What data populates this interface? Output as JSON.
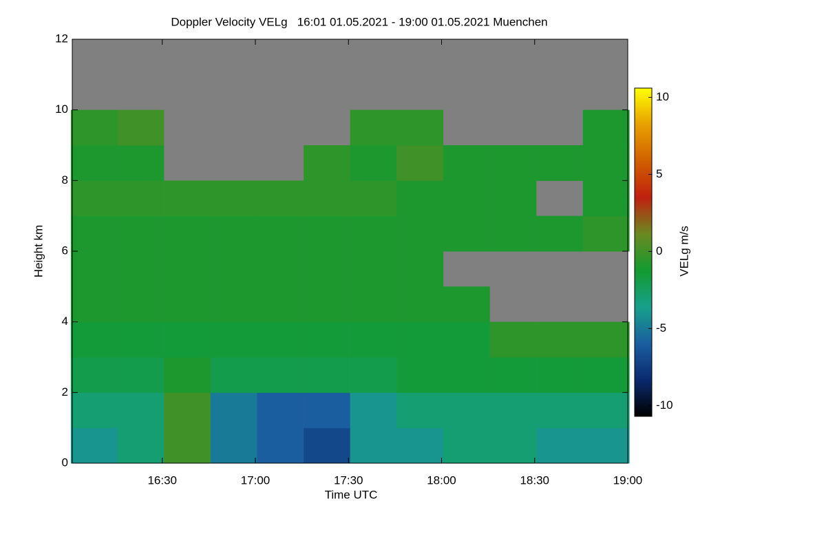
{
  "chart_data": {
    "type": "heatmap",
    "title": "Doppler Velocity VELg   16:01 01.05.2021 - 19:00 01.05.2021 Muenchen",
    "x_label": "Time UTC",
    "y_label": "Height km",
    "colorbar_label": "VELg m/s",
    "xlim": [
      961,
      1140
    ],
    "xticks": [
      {
        "value": 990,
        "label": "16:30"
      },
      {
        "value": 1020,
        "label": "17:00"
      },
      {
        "value": 1050,
        "label": "17:30"
      },
      {
        "value": 1080,
        "label": "18:00"
      },
      {
        "value": 1110,
        "label": "18:30"
      },
      {
        "value": 1140,
        "label": "19:00"
      }
    ],
    "ylim": [
      0,
      12
    ],
    "yticks": [
      0,
      2,
      4,
      6,
      8,
      10,
      12
    ],
    "zlim": [
      -10.7,
      10.6
    ],
    "zticks": [
      -10,
      -5,
      0,
      5,
      10
    ],
    "colors": [
      "#000000",
      "#0a2a6e",
      "#1a5fa0",
      "#17a08a",
      "#139a30",
      "#6a8a20",
      "#c02010",
      "#d06000",
      "#e8a000",
      "#ffff00"
    ],
    "missing_color": "#808080",
    "x": [
      968,
      983,
      998,
      1013,
      1028,
      1043,
      1058,
      1073,
      1088,
      1103,
      1118,
      1133
    ],
    "y": [
      0.5,
      1.5,
      2.5,
      3.5,
      4.5,
      5.5,
      6.5,
      7.5,
      8.5,
      9.5,
      10.5,
      11.5
    ],
    "z": [
      [
        -4,
        -3,
        0,
        -5,
        -6,
        -7,
        -4,
        -4,
        -3,
        -3,
        -4,
        -4
      ],
      [
        -3,
        -3,
        0,
        -5,
        -6,
        -6,
        -4,
        -3,
        -3,
        -3,
        -3,
        -3
      ],
      [
        -2,
        -2,
        -1,
        -2,
        -2,
        -2,
        -2,
        -1.5,
        -1.5,
        -1.5,
        -1.5,
        -1.5
      ],
      [
        -1.5,
        -1.5,
        -1.5,
        -1.5,
        -1.5,
        -1.5,
        -1.5,
        -1.5,
        -1.5,
        -0.5,
        -0.5,
        -0.5
      ],
      [
        -1,
        -1,
        -1,
        -1,
        -1,
        -1,
        -1,
        -1,
        -1,
        null,
        null,
        null
      ],
      [
        -1,
        -1,
        -1,
        -1,
        -1,
        -1,
        -1,
        -1,
        null,
        null,
        null,
        null
      ],
      [
        -1,
        -1,
        -1,
        -1,
        -1,
        -1,
        -1,
        -1,
        -1,
        -1,
        -1,
        -0.5
      ],
      [
        -0.5,
        -0.5,
        -0.5,
        -0.5,
        -0.5,
        -0.5,
        -0.5,
        -1,
        -1,
        -1,
        null,
        -1
      ],
      [
        -1,
        -1,
        null,
        null,
        null,
        -0.5,
        -1,
        0,
        -1,
        -1,
        -1,
        -1
      ],
      [
        -0.5,
        0,
        null,
        null,
        null,
        null,
        -0.5,
        -0.5,
        null,
        null,
        null,
        -1
      ],
      [
        null,
        null,
        null,
        null,
        null,
        null,
        null,
        null,
        null,
        null,
        null,
        null
      ],
      [
        null,
        null,
        null,
        null,
        null,
        null,
        null,
        null,
        null,
        null,
        null,
        null
      ]
    ]
  }
}
